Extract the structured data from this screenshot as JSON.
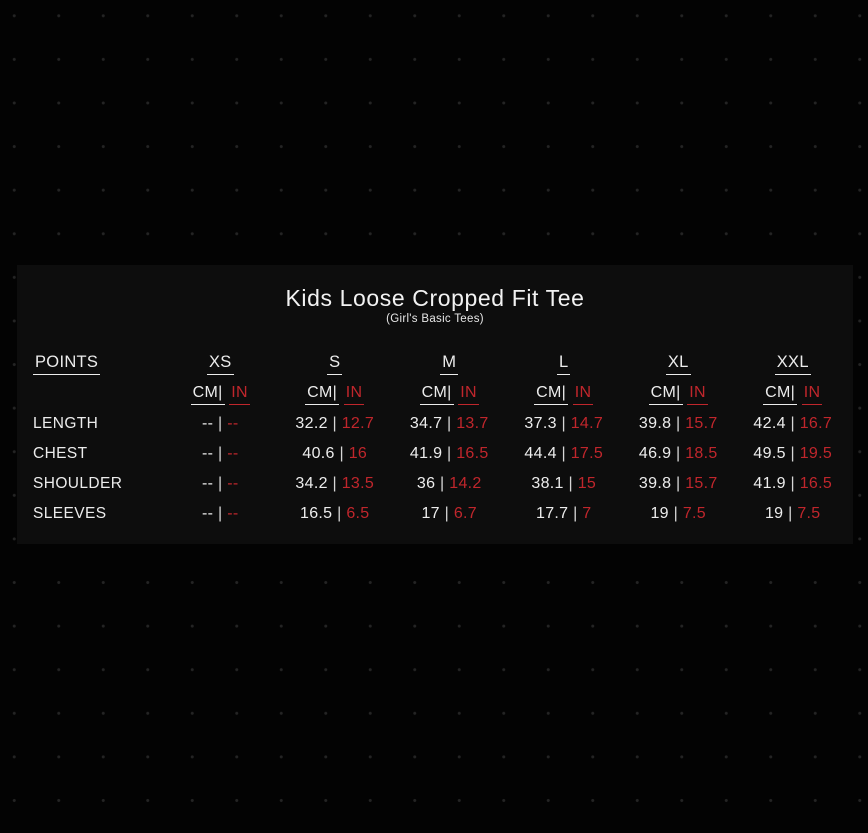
{
  "panel": {
    "title": "Kids Loose Cropped Fit Tee",
    "subtitle": "(Girl's Basic Tees)"
  },
  "table": {
    "points_label": "POINTS",
    "cm_label": "CM|",
    "in_label": "IN",
    "separator": "|",
    "sizes": [
      "XS",
      "S",
      "M",
      "L",
      "XL",
      "XXL"
    ],
    "rows": [
      {
        "label": "LENGTH",
        "cm": [
          "--",
          "32.2",
          "34.7",
          "37.3",
          "39.8",
          "42.4"
        ],
        "in": [
          "--",
          "12.7",
          "13.7",
          "14.7",
          "15.7",
          "16.7"
        ]
      },
      {
        "label": "CHEST",
        "cm": [
          "--",
          "40.6",
          "41.9",
          "44.4",
          "46.9",
          "49.5"
        ],
        "in": [
          "--",
          "16",
          "16.5",
          "17.5",
          "18.5",
          "19.5"
        ]
      },
      {
        "label": "SHOULDER",
        "cm": [
          "--",
          "34.2",
          "36",
          "38.1",
          "39.8",
          "41.9"
        ],
        "in": [
          "--",
          "13.5",
          "14.2",
          "15",
          "15.7",
          "16.5"
        ]
      },
      {
        "label": "SLEEVES",
        "cm": [
          "--",
          "16.5",
          "17",
          "17.7",
          "19",
          "19"
        ],
        "in": [
          "--",
          "6.5",
          "6.7",
          "7",
          "7.5",
          "7.5"
        ]
      }
    ]
  },
  "colors": {
    "background": "#030303",
    "panel": "#0d0d0d",
    "text_white": "#ececec",
    "accent_red": "#c0262c"
  },
  "chart_data": {
    "type": "table",
    "title": "Kids Loose Cropped Fit Tee",
    "subtitle": "(Girl's Basic Tees)",
    "columns": [
      "POINTS",
      "XS",
      "S",
      "M",
      "L",
      "XL",
      "XXL"
    ],
    "units_per_size": [
      "CM",
      "IN"
    ],
    "rows": [
      {
        "point": "LENGTH",
        "XS": {
          "cm": null,
          "in": null
        },
        "S": {
          "cm": 32.2,
          "in": 12.7
        },
        "M": {
          "cm": 34.7,
          "in": 13.7
        },
        "L": {
          "cm": 37.3,
          "in": 14.7
        },
        "XL": {
          "cm": 39.8,
          "in": 15.7
        },
        "XXL": {
          "cm": 42.4,
          "in": 16.7
        }
      },
      {
        "point": "CHEST",
        "XS": {
          "cm": null,
          "in": null
        },
        "S": {
          "cm": 40.6,
          "in": 16
        },
        "M": {
          "cm": 41.9,
          "in": 16.5
        },
        "L": {
          "cm": 44.4,
          "in": 17.5
        },
        "XL": {
          "cm": 46.9,
          "in": 18.5
        },
        "XXL": {
          "cm": 49.5,
          "in": 19.5
        }
      },
      {
        "point": "SHOULDER",
        "XS": {
          "cm": null,
          "in": null
        },
        "S": {
          "cm": 34.2,
          "in": 13.5
        },
        "M": {
          "cm": 36,
          "in": 14.2
        },
        "L": {
          "cm": 38.1,
          "in": 15
        },
        "XL": {
          "cm": 39.8,
          "in": 15.7
        },
        "XXL": {
          "cm": 41.9,
          "in": 16.5
        }
      },
      {
        "point": "SLEEVES",
        "XS": {
          "cm": null,
          "in": null
        },
        "S": {
          "cm": 16.5,
          "in": 6.5
        },
        "M": {
          "cm": 17,
          "in": 6.7
        },
        "L": {
          "cm": 17.7,
          "in": 7
        },
        "XL": {
          "cm": 19,
          "in": 7.5
        },
        "XXL": {
          "cm": 19,
          "in": 7.5
        }
      }
    ]
  }
}
